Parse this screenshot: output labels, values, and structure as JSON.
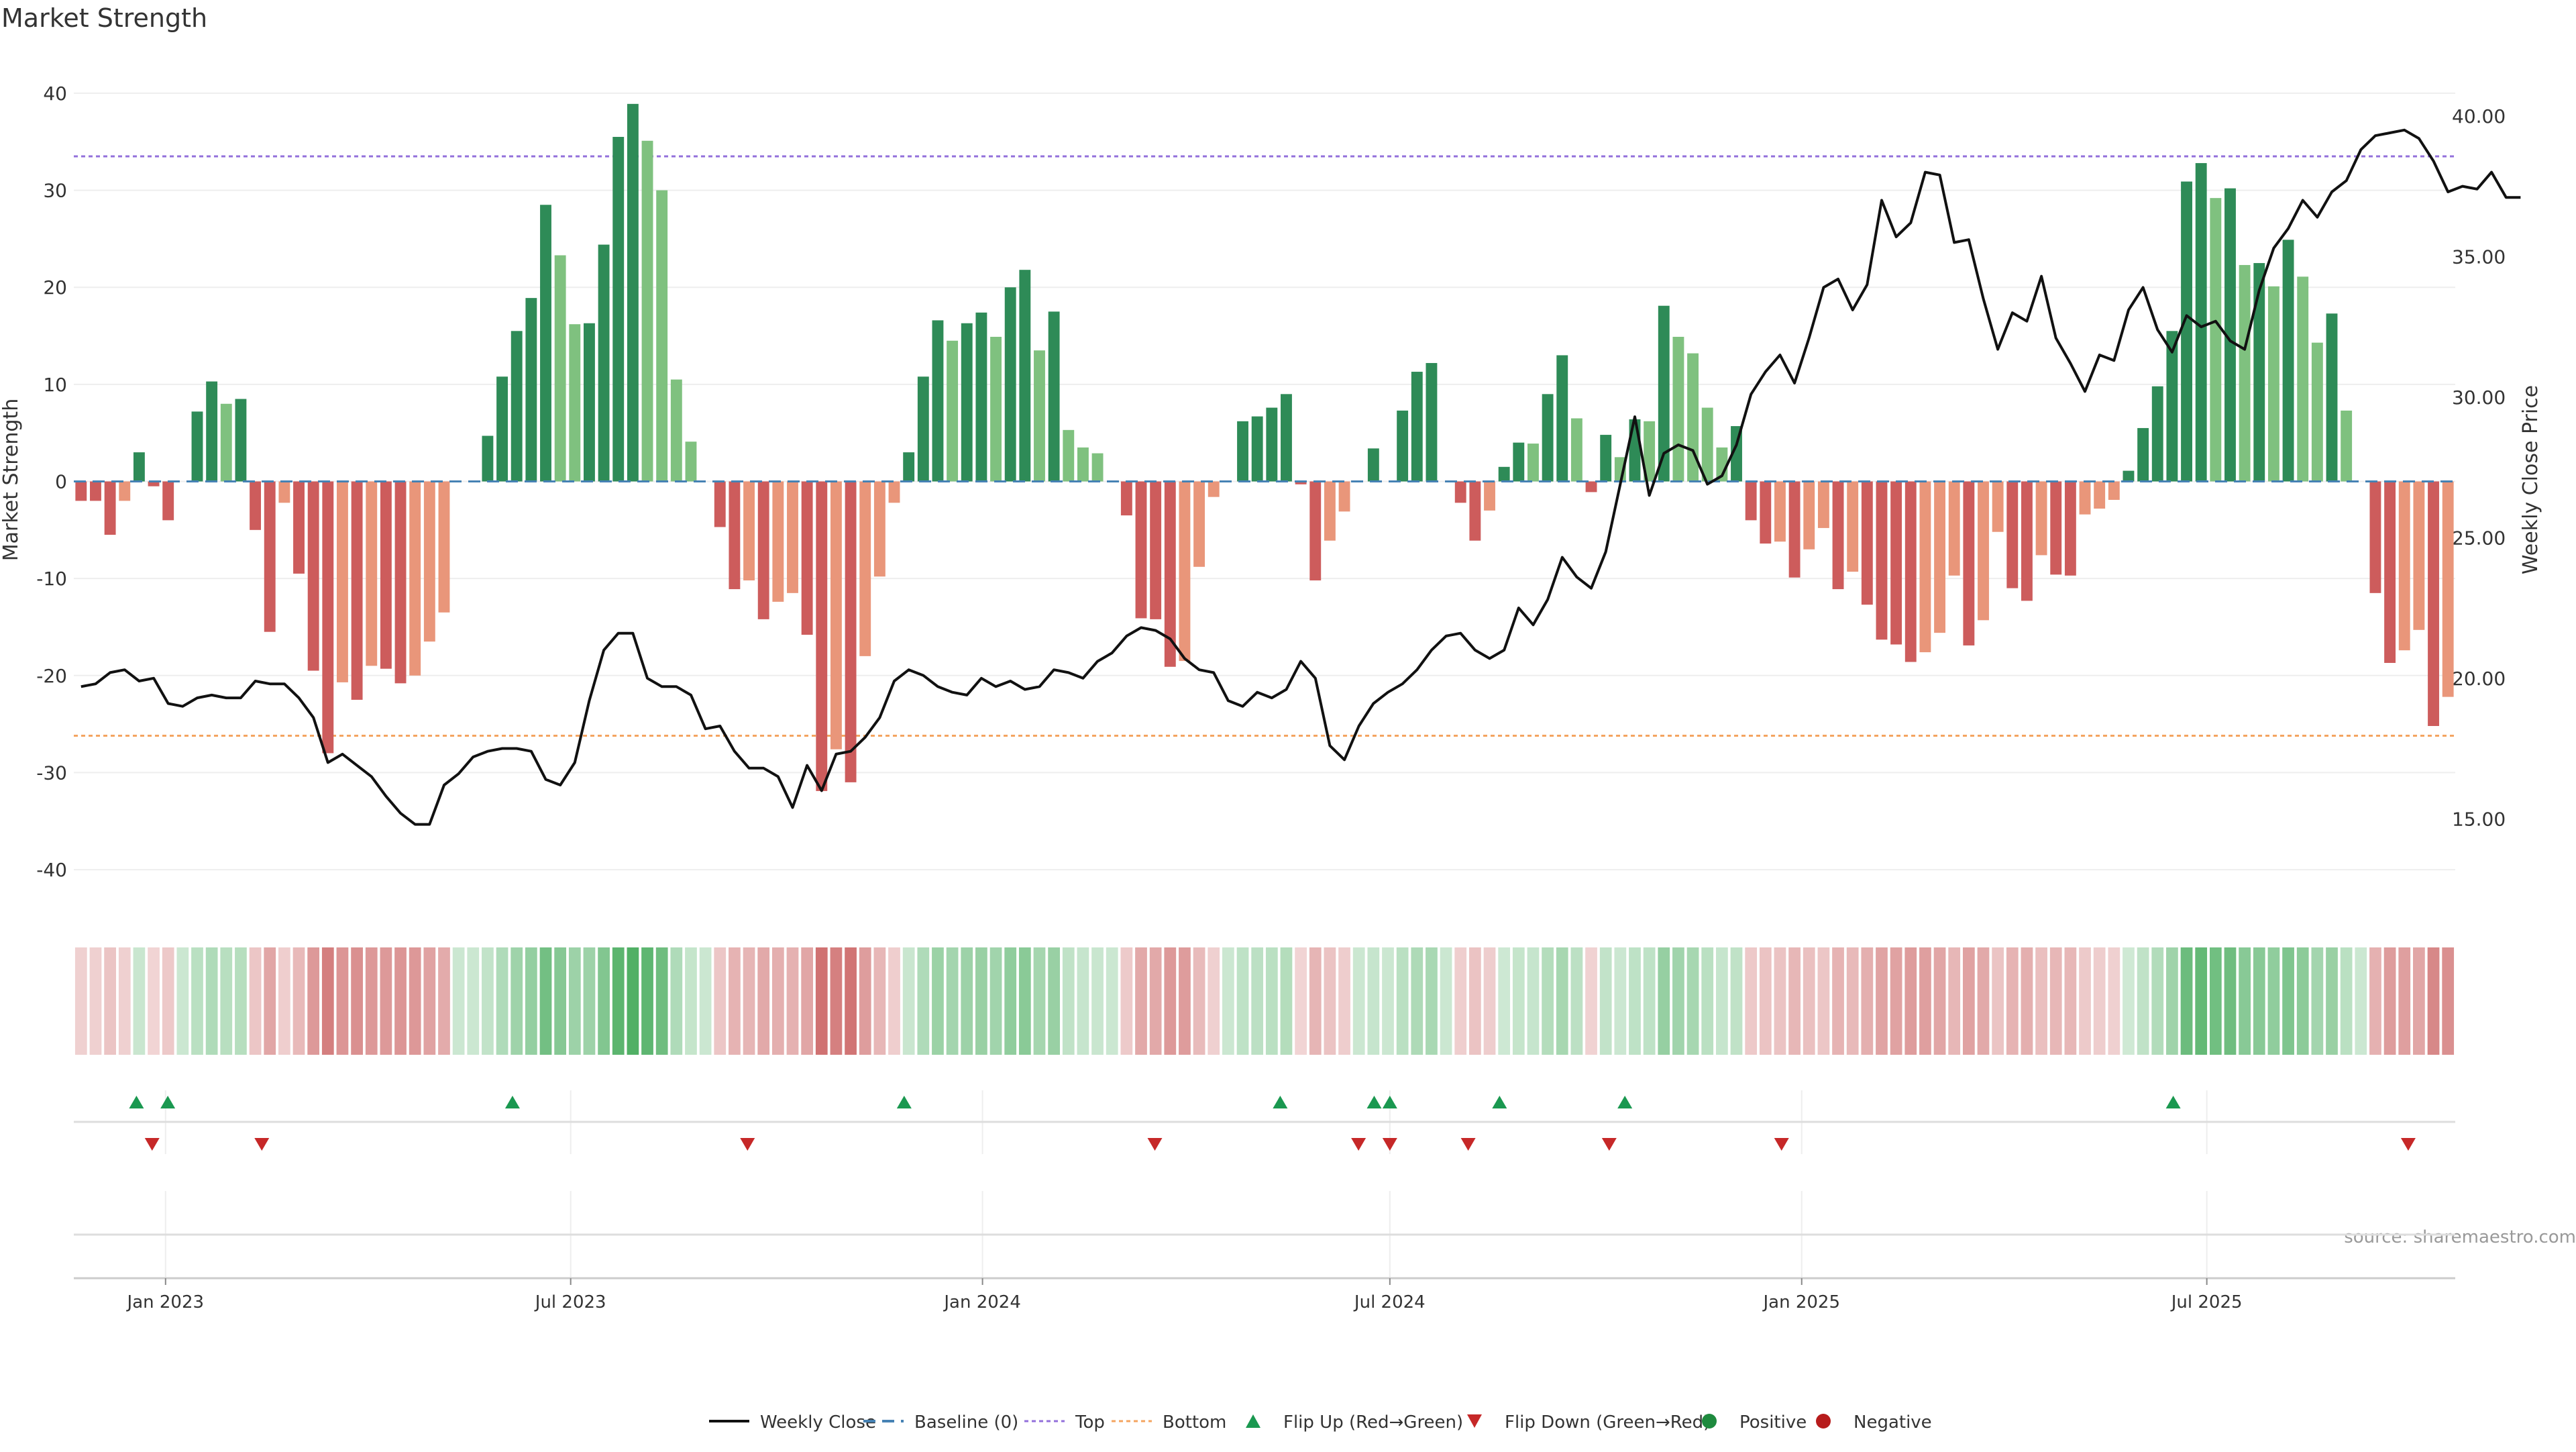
{
  "chart_data": {
    "type": "bar",
    "title": "Market Strength",
    "ylabel": "Market Strength",
    "y2label": "Weekly Close Price",
    "source": "source: sharemaestro.com",
    "ylim": [
      -42,
      42
    ],
    "y2lim": [
      12.5,
      41.5
    ],
    "yticks": [
      40,
      30,
      20,
      10,
      0,
      -10,
      -20,
      -30,
      -40
    ],
    "y2ticks": [
      "40.00",
      "35.00",
      "30.00",
      "25.00",
      "20.00",
      "15.00"
    ],
    "reference_lines": {
      "top": 33.5,
      "bottom": -26.2,
      "baseline": 0
    },
    "xrange": [
      "2022-11-21",
      "2025-10-20"
    ],
    "xticks": [
      {
        "date": "2023-01-01",
        "label": "Jan 2023"
      },
      {
        "date": "2023-07-01",
        "label": "Jul 2023"
      },
      {
        "date": "2024-01-01",
        "label": "Jan 2024"
      },
      {
        "date": "2024-07-01",
        "label": "Jul 2024"
      },
      {
        "date": "2025-01-01",
        "label": "Jan 2025"
      },
      {
        "date": "2025-07-01",
        "label": "Jul 2025"
      }
    ],
    "colors": {
      "pos_strong": "#2e8b57",
      "pos_weak": "#7fc17f",
      "neg_strong": "#cd5c5c",
      "neg_weak": "#e9967a",
      "price_line": "#111111",
      "baseline": "#4682b4",
      "top": "#9370db",
      "bottom": "#f4a460",
      "flip_up": "#1a9850",
      "flip_down": "#c62828",
      "positive": "#1e8a3e",
      "negative": "#b71c1c",
      "grid": "#eeeeee"
    },
    "series": [
      {
        "name": "Market Strength",
        "start": "2022-11-21",
        "interval_days": 7,
        "values": [
          -2,
          -2,
          -5.5,
          -2,
          3,
          -0.5,
          -4,
          0,
          7.2,
          10.3,
          8,
          8.5,
          -5,
          -15.5,
          -2.2,
          -9.5,
          -19.5,
          -28,
          -20.7,
          -22.5,
          -19,
          -19.3,
          -20.8,
          -20,
          -16.5,
          -13.5,
          0,
          0,
          4.7,
          10.8,
          15.5,
          18.9,
          28.5,
          23.3,
          16.2,
          16.3,
          24.4,
          35.5,
          38.9,
          35.1,
          30,
          10.5,
          4.1,
          0,
          -4.7,
          -11.1,
          -10.2,
          -14.2,
          -12.4,
          -11.5,
          -15.8,
          -31.9,
          -27.6,
          -31,
          -18,
          -9.8,
          -2.2,
          3,
          10.8,
          16.6,
          14.5,
          16.3,
          17.4,
          14.9,
          20,
          21.8,
          13.5,
          17.5,
          5.3,
          3.5,
          2.9,
          0,
          -3.5,
          -14.1,
          -14.2,
          -19.1,
          -18.5,
          -8.8,
          -1.6,
          0,
          6.2,
          6.7,
          7.6,
          9,
          -0.3,
          -10.2,
          -6.1,
          -3.1,
          0,
          3.4,
          0,
          7.3,
          11.3,
          12.2,
          0,
          -2.2,
          -6.1,
          -3,
          1.5,
          4,
          3.9,
          9,
          13,
          6.5,
          -1.1,
          4.8,
          2.5,
          6.4,
          6.2,
          18.1,
          14.9,
          13.2,
          7.6,
          3.5,
          5.7,
          -4,
          -6.4,
          -6.2,
          -9.9,
          -7,
          -4.8,
          -11.1,
          -9.3,
          -12.7,
          -16.3,
          -16.8,
          -18.6,
          -17.6,
          -15.6,
          -9.7,
          -16.9,
          -14.3,
          -5.2,
          -11,
          -12.3,
          -7.6,
          -9.6,
          -9.7,
          -3.4,
          -2.8,
          -1.9,
          1.1,
          5.5,
          9.8,
          15.5,
          30.9,
          32.8,
          29.2,
          30.2,
          22.3,
          22.5,
          20.1,
          24.9,
          21.1,
          14.3,
          17.3,
          7.3,
          0,
          -11.5,
          -18.7,
          -17.4,
          -15.3,
          -25.2,
          -22.2
        ]
      },
      {
        "name": "Weekly Close",
        "start": "2022-11-21",
        "interval_days": 7,
        "values": [
          19.7,
          19.8,
          20.2,
          20.3,
          19.9,
          20.0,
          19.1,
          19.0,
          19.3,
          19.4,
          19.3,
          19.3,
          19.9,
          19.8,
          19.8,
          19.3,
          18.6,
          17.0,
          17.3,
          16.9,
          16.5,
          15.8,
          15.2,
          14.8,
          14.8,
          16.2,
          16.6,
          17.2,
          17.4,
          17.5,
          17.5,
          17.4,
          16.4,
          16.2,
          17.0,
          19.2,
          21.0,
          21.6,
          21.6,
          20.0,
          19.7,
          19.7,
          19.4,
          18.2,
          18.3,
          17.4,
          16.8,
          16.8,
          16.5,
          15.4,
          16.9,
          16.0,
          17.3,
          17.4,
          17.9,
          18.6,
          19.9,
          20.3,
          20.1,
          19.7,
          19.5,
          19.4,
          20.0,
          19.7,
          19.9,
          19.6,
          19.7,
          20.3,
          20.2,
          20.0,
          20.6,
          20.9,
          21.5,
          21.8,
          21.7,
          21.4,
          20.7,
          20.3,
          20.2,
          19.2,
          19.0,
          19.5,
          19.3,
          19.6,
          20.6,
          20.0,
          17.6,
          17.1,
          18.3,
          19.1,
          19.5,
          19.8,
          20.3,
          21.0,
          21.5,
          21.6,
          21.0,
          20.7,
          21.0,
          22.5,
          21.9,
          22.8,
          24.3,
          23.6,
          23.2,
          24.5,
          26.9,
          29.3,
          26.5,
          28.0,
          28.3,
          28.1,
          26.9,
          27.2,
          28.3,
          30.1,
          30.9,
          31.5,
          30.5,
          32.1,
          33.9,
          34.2,
          33.1,
          34.0,
          37.0,
          35.7,
          36.2,
          38.0,
          37.9,
          35.5,
          35.6,
          33.5,
          31.7,
          33.0,
          32.7,
          34.3,
          32.1,
          31.2,
          30.2,
          31.5,
          31.3,
          33.1,
          33.9,
          32.4,
          31.6,
          32.9,
          32.5,
          32.7,
          32.0,
          31.7,
          33.8,
          35.3,
          36.0,
          37.0,
          36.4,
          37.3,
          37.7,
          38.8,
          39.3,
          39.4,
          39.5,
          39.2,
          38.4,
          37.3,
          37.5,
          37.4,
          38.0,
          37.1,
          37.1
        ]
      }
    ],
    "flip_up_markers": [
      "2022-12-19",
      "2023-01-02",
      "2023-06-05",
      "2023-11-27",
      "2024-05-13",
      "2024-06-24",
      "2024-07-01",
      "2024-08-19",
      "2024-10-14",
      "2025-06-16"
    ],
    "flip_down_markers": [
      "2022-12-26",
      "2023-02-13",
      "2023-09-18",
      "2024-03-18",
      "2024-06-17",
      "2024-07-01",
      "2024-08-05",
      "2024-10-07",
      "2024-12-23",
      "2025-09-29"
    ],
    "legend": [
      "Weekly Close",
      "Baseline (0)",
      "Top",
      "Bottom",
      "Flip Up (Red→Green)",
      "Flip Down (Green→Red)",
      "Positive",
      "Negative"
    ],
    "legend_position": "bottom"
  }
}
